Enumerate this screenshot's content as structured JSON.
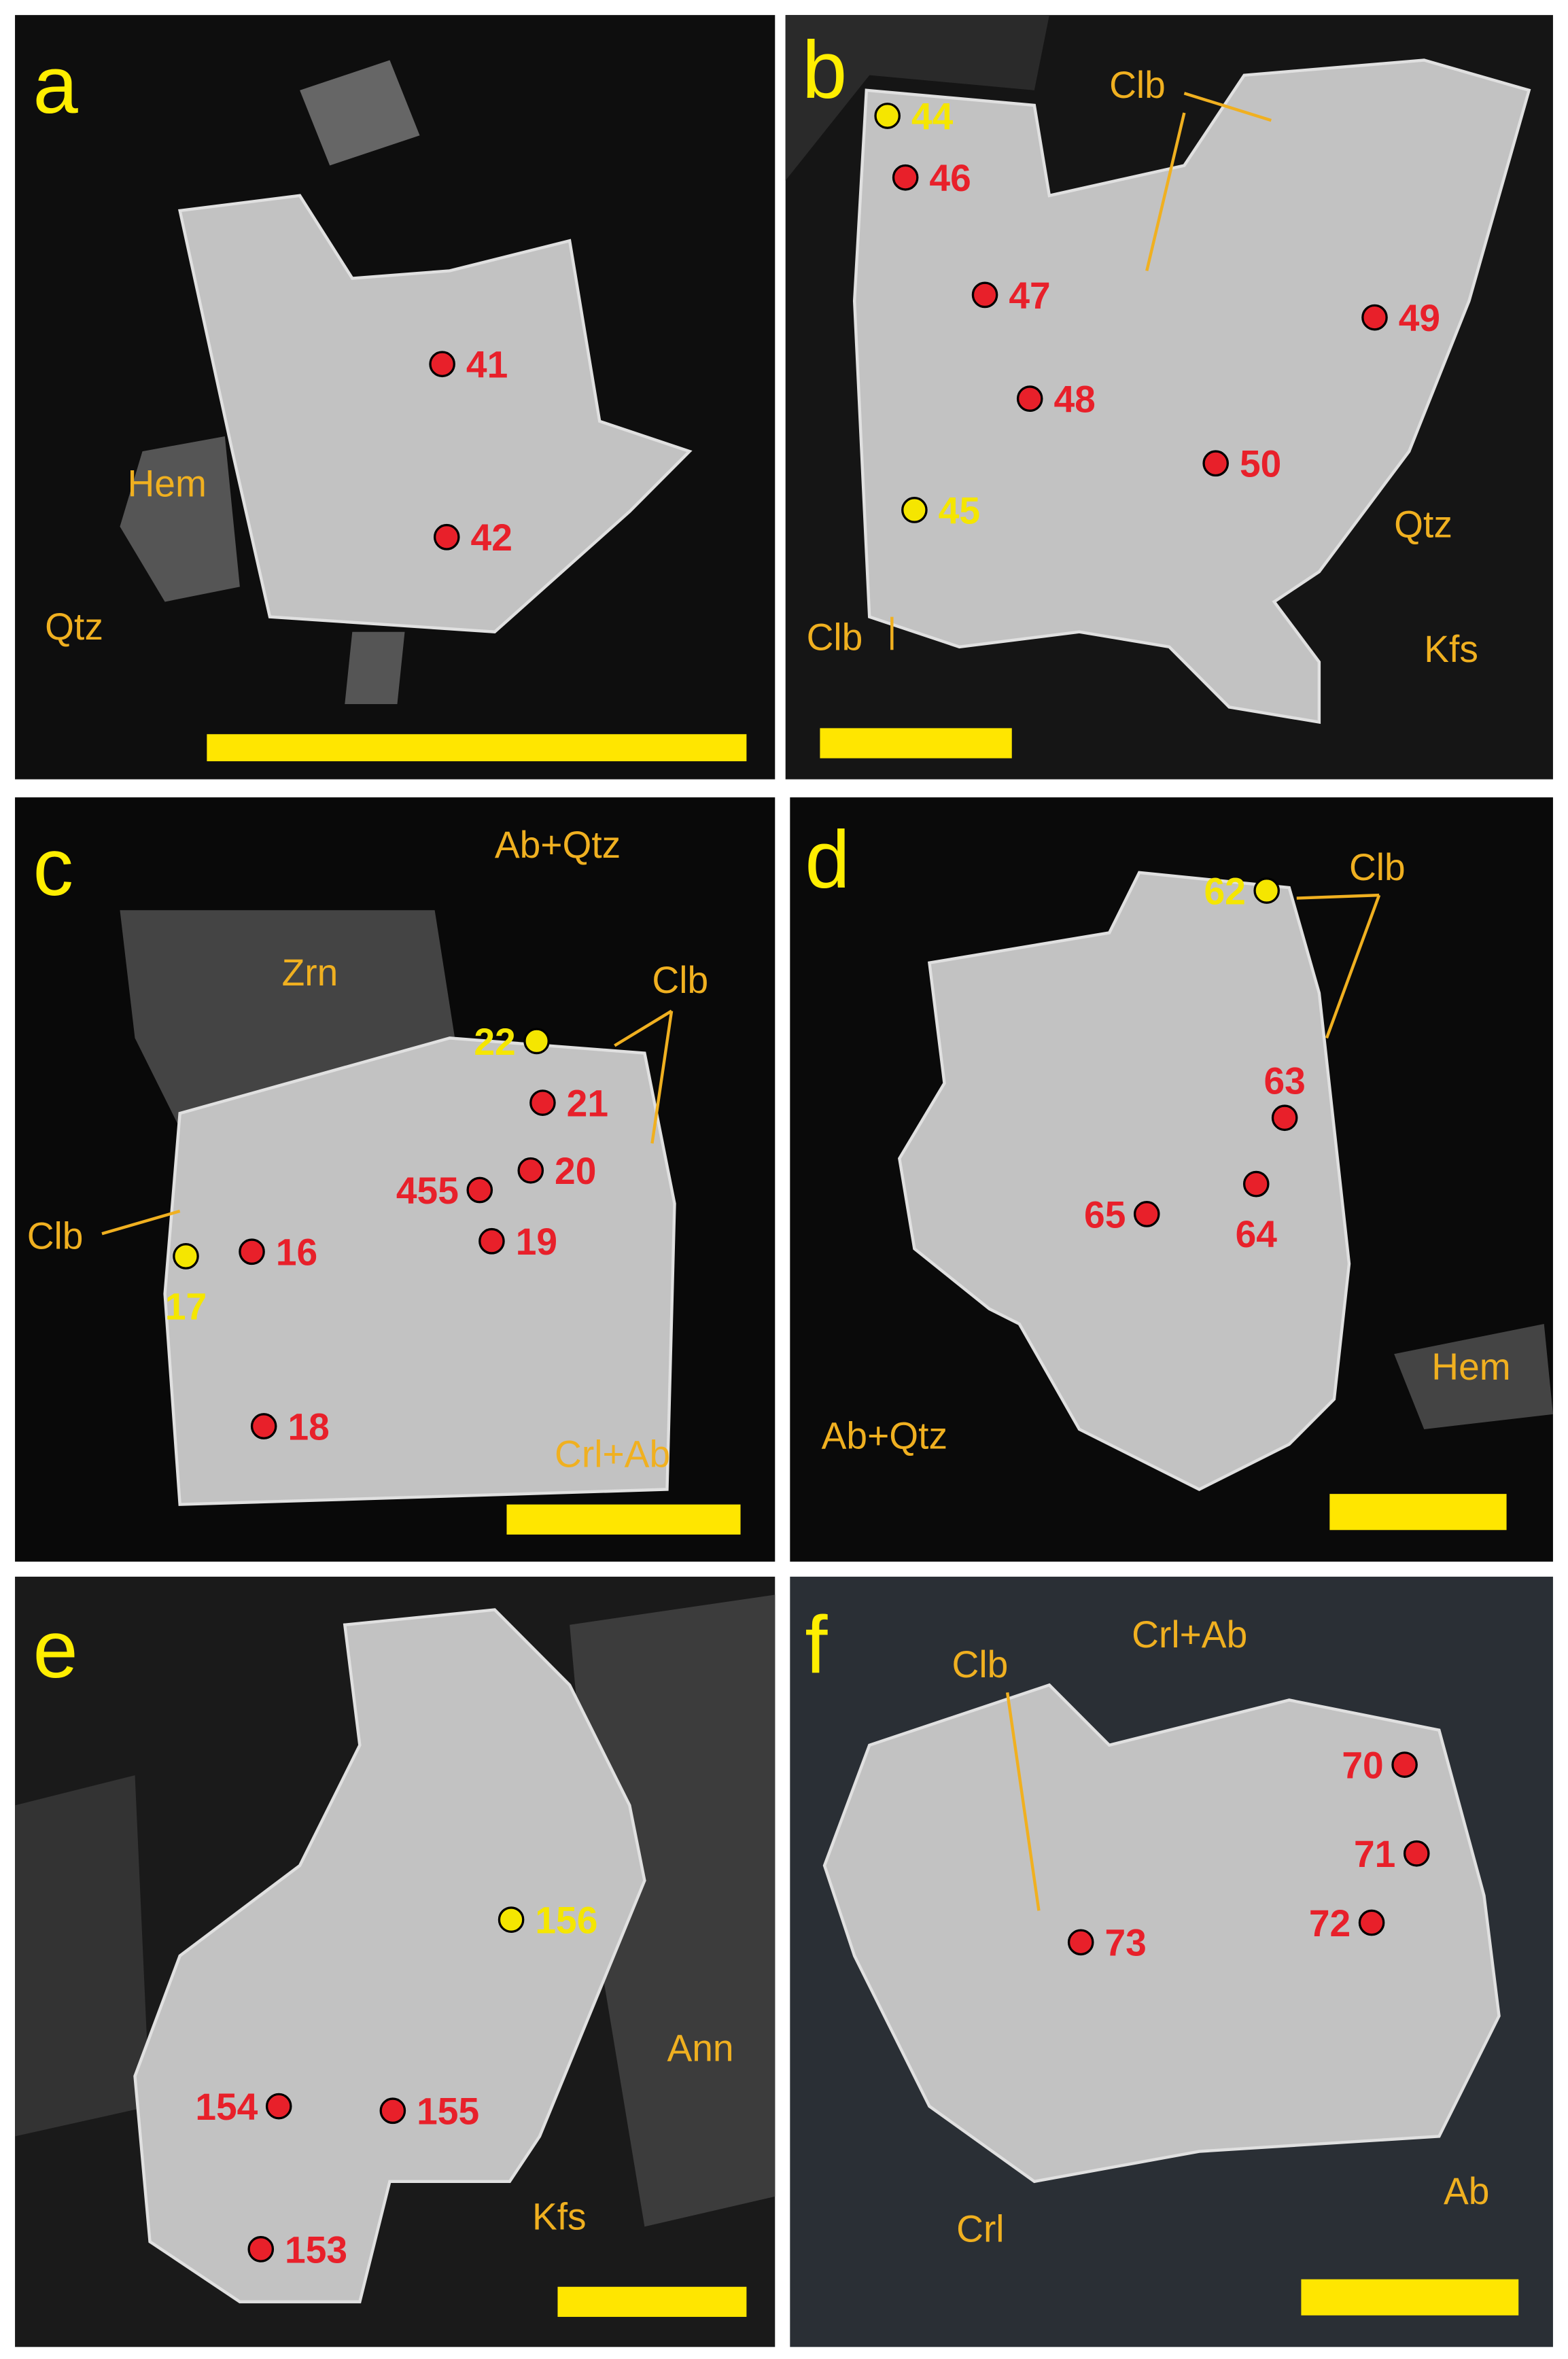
{
  "panels": [
    {
      "letter": "a",
      "labels": [
        "Hem",
        "Qtz"
      ],
      "points": [
        {
          "label": "41",
          "color": "#e8202a"
        },
        {
          "label": "42",
          "color": "#e8202a"
        }
      ]
    },
    {
      "letter": "b",
      "labels": [
        "Clb",
        "Qtz",
        "Kfs",
        "Clb"
      ],
      "points": [
        {
          "label": "44",
          "color": "#f5e600"
        },
        {
          "label": "46",
          "color": "#e8202a"
        },
        {
          "label": "47",
          "color": "#e8202a"
        },
        {
          "label": "49",
          "color": "#e8202a"
        },
        {
          "label": "48",
          "color": "#e8202a"
        },
        {
          "label": "50",
          "color": "#e8202a"
        },
        {
          "label": "45",
          "color": "#f5e600"
        }
      ]
    },
    {
      "letter": "c",
      "labels": [
        "Ab+Qtz",
        "Zrn",
        "Clb",
        "Clb",
        "Crl+Ab"
      ],
      "points": [
        {
          "label": "22",
          "color": "#f5e600"
        },
        {
          "label": "21",
          "color": "#e8202a"
        },
        {
          "label": "20",
          "color": "#e8202a"
        },
        {
          "label": "455",
          "color": "#e8202a"
        },
        {
          "label": "19",
          "color": "#e8202a"
        },
        {
          "label": "16",
          "color": "#e8202a"
        },
        {
          "label": "17",
          "color": "#f5e600"
        },
        {
          "label": "18",
          "color": "#e8202a"
        }
      ]
    },
    {
      "letter": "d",
      "labels": [
        "Clb",
        "Hem",
        "Ab+Qtz"
      ],
      "points": [
        {
          "label": "62",
          "color": "#f5e600"
        },
        {
          "label": "63",
          "color": "#e8202a"
        },
        {
          "label": "64",
          "color": "#e8202a"
        },
        {
          "label": "65",
          "color": "#e8202a"
        }
      ]
    },
    {
      "letter": "e",
      "labels": [
        "Ann",
        "Kfs"
      ],
      "points": [
        {
          "label": "156",
          "color": "#f5e600"
        },
        {
          "label": "154",
          "color": "#e8202a"
        },
        {
          "label": "155",
          "color": "#e8202a"
        },
        {
          "label": "153",
          "color": "#e8202a"
        }
      ]
    },
    {
      "letter": "f",
      "labels": [
        "Clb",
        "Crl+Ab",
        "Crl",
        "Ab"
      ],
      "points": [
        {
          "label": "70",
          "color": "#e8202a"
        },
        {
          "label": "71",
          "color": "#e8202a"
        },
        {
          "label": "72",
          "color": "#e8202a"
        },
        {
          "label": "73",
          "color": "#e8202a"
        }
      ]
    }
  ]
}
